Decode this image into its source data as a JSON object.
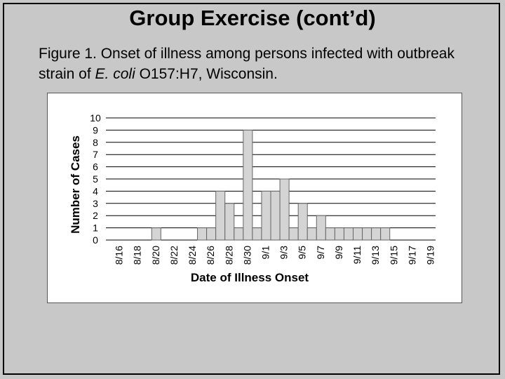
{
  "slide": {
    "title": "Group Exercise (cont’d)",
    "caption_part1": "Figure 1.  Onset of illness among persons infected with outbreak strain of ",
    "caption_italic": "E. coli",
    "caption_part2": " O157:H7, Wisconsin."
  },
  "colors": {
    "background": "#c8c8c8",
    "bar_fill": "#d4d4d4",
    "bar_stroke": "#666666",
    "grid": "#000000"
  },
  "chart_data": {
    "type": "bar",
    "xlabel": "Date of Illness Onset",
    "ylabel": "Number of Cases",
    "ylim": [
      0,
      10
    ],
    "yticks": [
      0,
      1,
      2,
      3,
      4,
      5,
      6,
      7,
      8,
      9,
      10
    ],
    "grid": true,
    "x_tick_labels": [
      "8/16",
      "8/18",
      "8/20",
      "8/22",
      "8/24",
      "8/26",
      "8/28",
      "8/30",
      "9/1",
      "9/3",
      "9/5",
      "9/7",
      "9/9",
      "9/11",
      "9/13",
      "9/15",
      "9/17",
      "9/19"
    ],
    "categories": [
      "8/15",
      "8/16",
      "8/17",
      "8/18",
      "8/19",
      "8/20",
      "8/21",
      "8/22",
      "8/23",
      "8/24",
      "8/25",
      "8/26",
      "8/27",
      "8/28",
      "8/29",
      "8/30",
      "8/31",
      "9/1",
      "9/2",
      "9/3",
      "9/4",
      "9/5",
      "9/6",
      "9/7",
      "9/8",
      "9/9",
      "9/10",
      "9/11",
      "9/12",
      "9/13",
      "9/14",
      "9/15",
      "9/16",
      "9/17",
      "9/18",
      "9/19"
    ],
    "values": [
      0,
      0,
      0,
      0,
      0,
      1,
      0,
      0,
      0,
      0,
      1,
      1,
      4,
      3,
      1,
      9,
      1,
      4,
      4,
      5,
      1,
      3,
      1,
      2,
      1,
      1,
      1,
      1,
      1,
      1,
      1,
      0,
      0,
      0,
      0,
      0
    ]
  }
}
